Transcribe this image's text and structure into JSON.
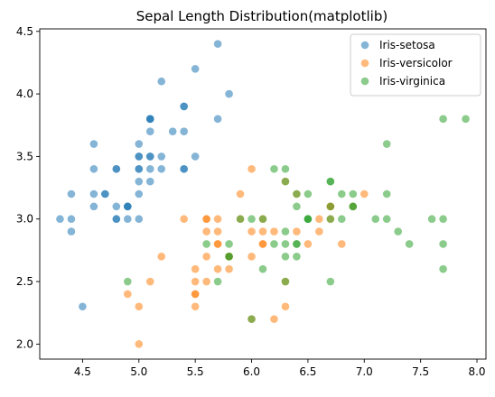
{
  "chart_data": {
    "type": "scatter",
    "title": "Sepal Length Distribution(matplotlib)",
    "xlabel": "",
    "ylabel": "",
    "xlim": [
      4.12,
      8.08
    ],
    "ylim": [
      1.88,
      4.52
    ],
    "xticks": [
      "4.5",
      "5.0",
      "5.5",
      "6.0",
      "6.5",
      "7.0",
      "7.5",
      "8.0"
    ],
    "yticks": [
      "2.0",
      "2.5",
      "3.0",
      "3.5",
      "4.0",
      "4.5"
    ],
    "grid": false,
    "legend_position": "top-right",
    "series": [
      {
        "name": "Iris-setosa",
        "color": "#1f77b4",
        "points": [
          [
            5.1,
            3.5
          ],
          [
            4.9,
            3.0
          ],
          [
            4.7,
            3.2
          ],
          [
            4.6,
            3.1
          ],
          [
            5.0,
            3.6
          ],
          [
            5.4,
            3.9
          ],
          [
            4.6,
            3.4
          ],
          [
            5.0,
            3.4
          ],
          [
            4.4,
            2.9
          ],
          [
            4.9,
            3.1
          ],
          [
            5.4,
            3.7
          ],
          [
            4.8,
            3.4
          ],
          [
            4.8,
            3.0
          ],
          [
            4.3,
            3.0
          ],
          [
            5.8,
            4.0
          ],
          [
            5.7,
            4.4
          ],
          [
            5.4,
            3.9
          ],
          [
            5.1,
            3.5
          ],
          [
            5.7,
            3.8
          ],
          [
            5.1,
            3.8
          ],
          [
            5.4,
            3.4
          ],
          [
            5.1,
            3.7
          ],
          [
            4.6,
            3.6
          ],
          [
            5.1,
            3.3
          ],
          [
            4.8,
            3.4
          ],
          [
            5.0,
            3.0
          ],
          [
            5.0,
            3.4
          ],
          [
            5.2,
            3.5
          ],
          [
            5.2,
            3.4
          ],
          [
            4.7,
            3.2
          ],
          [
            4.8,
            3.1
          ],
          [
            5.4,
            3.4
          ],
          [
            5.2,
            4.1
          ],
          [
            5.5,
            4.2
          ],
          [
            4.9,
            3.1
          ],
          [
            5.0,
            3.2
          ],
          [
            5.5,
            3.5
          ],
          [
            4.9,
            3.1
          ],
          [
            4.4,
            3.0
          ],
          [
            5.1,
            3.4
          ],
          [
            5.0,
            3.5
          ],
          [
            4.5,
            2.3
          ],
          [
            4.4,
            3.2
          ],
          [
            5.0,
            3.5
          ],
          [
            5.1,
            3.8
          ],
          [
            4.8,
            3.0
          ],
          [
            5.1,
            3.8
          ],
          [
            4.6,
            3.2
          ],
          [
            5.3,
            3.7
          ],
          [
            5.0,
            3.3
          ]
        ]
      },
      {
        "name": "Iris-versicolor",
        "color": "#ff7f0e",
        "points": [
          [
            7.0,
            3.2
          ],
          [
            6.4,
            3.2
          ],
          [
            6.9,
            3.1
          ],
          [
            5.5,
            2.3
          ],
          [
            6.5,
            2.8
          ],
          [
            5.7,
            2.8
          ],
          [
            6.3,
            3.3
          ],
          [
            4.9,
            2.4
          ],
          [
            6.6,
            2.9
          ],
          [
            5.2,
            2.7
          ],
          [
            5.0,
            2.0
          ],
          [
            5.9,
            3.0
          ],
          [
            6.0,
            2.2
          ],
          [
            6.1,
            2.9
          ],
          [
            5.6,
            2.9
          ],
          [
            6.7,
            3.1
          ],
          [
            5.6,
            3.0
          ],
          [
            5.8,
            2.7
          ],
          [
            6.2,
            2.2
          ],
          [
            5.6,
            2.5
          ],
          [
            5.9,
            3.2
          ],
          [
            6.1,
            2.8
          ],
          [
            6.3,
            2.5
          ],
          [
            6.1,
            2.8
          ],
          [
            6.4,
            2.9
          ],
          [
            6.6,
            3.0
          ],
          [
            6.8,
            2.8
          ],
          [
            6.7,
            3.0
          ],
          [
            6.0,
            2.9
          ],
          [
            5.7,
            2.6
          ],
          [
            5.5,
            2.4
          ],
          [
            5.5,
            2.4
          ],
          [
            5.8,
            2.7
          ],
          [
            6.0,
            2.7
          ],
          [
            5.4,
            3.0
          ],
          [
            6.0,
            3.4
          ],
          [
            6.7,
            3.1
          ],
          [
            6.3,
            2.3
          ],
          [
            5.6,
            3.0
          ],
          [
            5.5,
            2.5
          ],
          [
            5.5,
            2.6
          ],
          [
            6.1,
            3.0
          ],
          [
            5.8,
            2.6
          ],
          [
            5.0,
            2.3
          ],
          [
            5.6,
            2.7
          ],
          [
            5.7,
            3.0
          ],
          [
            5.7,
            2.9
          ],
          [
            6.2,
            2.9
          ],
          [
            5.1,
            2.5
          ],
          [
            5.7,
            2.8
          ]
        ]
      },
      {
        "name": "Iris-virginica",
        "color": "#2ca02c",
        "points": [
          [
            6.3,
            3.3
          ],
          [
            5.8,
            2.7
          ],
          [
            7.1,
            3.0
          ],
          [
            6.3,
            2.9
          ],
          [
            6.5,
            3.0
          ],
          [
            7.6,
            3.0
          ],
          [
            4.9,
            2.5
          ],
          [
            7.3,
            2.9
          ],
          [
            6.7,
            2.5
          ],
          [
            7.2,
            3.6
          ],
          [
            6.5,
            3.2
          ],
          [
            6.4,
            2.7
          ],
          [
            6.8,
            3.0
          ],
          [
            5.7,
            2.5
          ],
          [
            5.8,
            2.8
          ],
          [
            6.4,
            3.2
          ],
          [
            6.5,
            3.0
          ],
          [
            7.7,
            3.8
          ],
          [
            7.7,
            2.6
          ],
          [
            6.0,
            2.2
          ],
          [
            6.9,
            3.2
          ],
          [
            5.6,
            2.8
          ],
          [
            7.7,
            2.8
          ],
          [
            6.3,
            2.7
          ],
          [
            6.7,
            3.3
          ],
          [
            7.2,
            3.2
          ],
          [
            6.2,
            2.8
          ],
          [
            6.1,
            3.0
          ],
          [
            6.4,
            2.8
          ],
          [
            7.2,
            3.0
          ],
          [
            7.4,
            2.8
          ],
          [
            7.9,
            3.8
          ],
          [
            6.4,
            2.8
          ],
          [
            6.3,
            2.8
          ],
          [
            6.1,
            2.6
          ],
          [
            7.7,
            3.0
          ],
          [
            6.3,
            3.4
          ],
          [
            6.4,
            3.1
          ],
          [
            6.0,
            3.0
          ],
          [
            6.9,
            3.1
          ],
          [
            6.7,
            3.1
          ],
          [
            6.9,
            3.1
          ],
          [
            5.8,
            2.7
          ],
          [
            6.8,
            3.2
          ],
          [
            6.7,
            3.3
          ],
          [
            6.7,
            3.0
          ],
          [
            6.3,
            2.5
          ],
          [
            6.5,
            3.0
          ],
          [
            6.2,
            3.4
          ],
          [
            5.9,
            3.0
          ]
        ]
      }
    ]
  }
}
